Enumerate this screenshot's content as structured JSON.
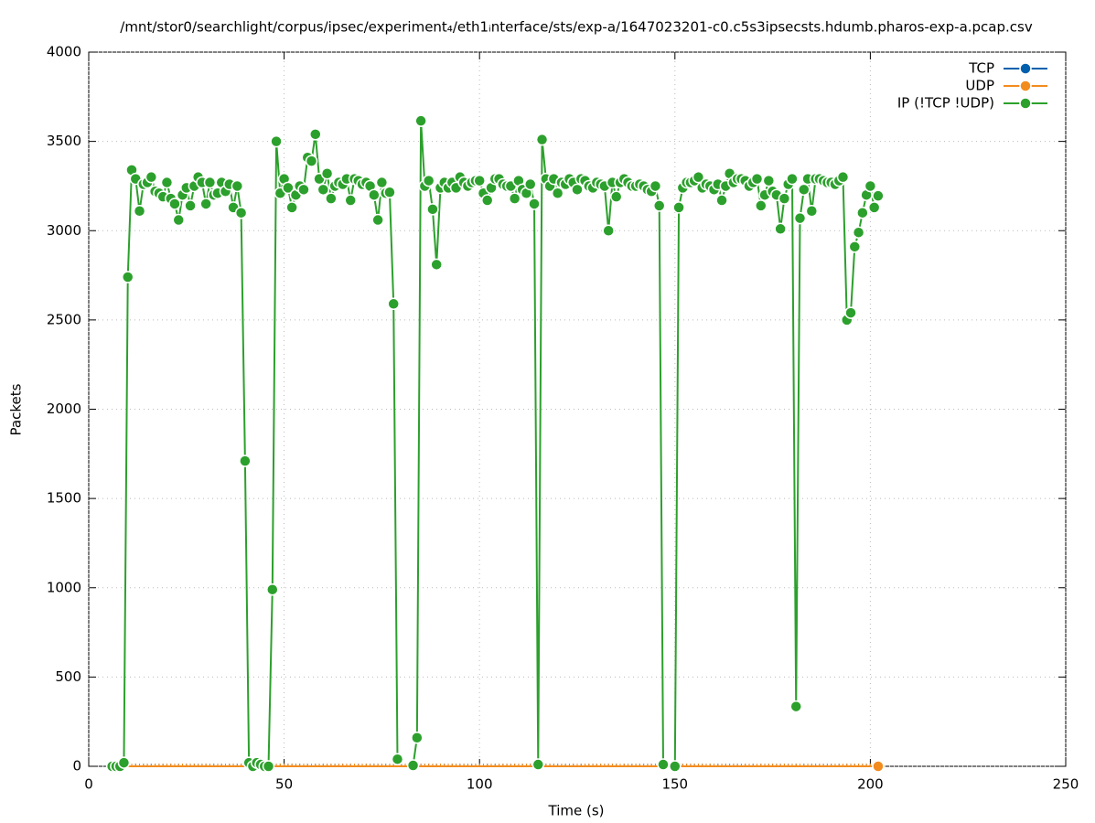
{
  "chart_data": {
    "type": "line",
    "title": "/mnt/stor0/searchlight/corpus/ipsec/experiment₄/eth1ᵢnterface/sts/exp-a/1647023201-c0.c5s3ipsecsts.hdumb.pharos-exp-a.pcap.csv",
    "x_label": "Time (s)",
    "y_label": "Packets",
    "xlim": [
      0,
      250
    ],
    "xticks": [
      0,
      50,
      100,
      150,
      200,
      250
    ],
    "ylim": [
      0,
      4000
    ],
    "yticks": [
      0,
      500,
      1000,
      1500,
      2000,
      2500,
      3000,
      3500,
      4000
    ],
    "grid": true,
    "legend": "top right",
    "x": [
      6,
      7,
      8,
      9,
      10,
      11,
      12,
      13,
      14,
      15,
      16,
      17,
      18,
      19,
      20,
      21,
      22,
      23,
      24,
      25,
      26,
      27,
      28,
      29,
      30,
      31,
      32,
      33,
      34,
      35,
      36,
      37,
      38,
      39,
      40,
      41,
      42,
      43,
      44,
      45,
      46,
      47,
      48,
      49,
      50,
      51,
      52,
      53,
      54,
      55,
      56,
      57,
      58,
      59,
      60,
      61,
      62,
      63,
      64,
      65,
      66,
      67,
      68,
      69,
      70,
      71,
      72,
      73,
      74,
      75,
      76,
      77,
      78,
      79,
      80,
      81,
      82,
      83,
      84,
      85,
      86,
      87,
      88,
      89,
      90,
      91,
      92,
      93,
      94,
      95,
      96,
      97,
      98,
      99,
      100,
      101,
      102,
      103,
      104,
      105,
      106,
      107,
      108,
      109,
      110,
      111,
      112,
      113,
      114,
      115,
      116,
      117,
      118,
      119,
      120,
      121,
      122,
      123,
      124,
      125,
      126,
      127,
      128,
      129,
      130,
      131,
      132,
      133,
      134,
      135,
      136,
      137,
      138,
      139,
      140,
      141,
      142,
      143,
      144,
      145,
      146,
      147,
      148,
      149,
      150,
      151,
      152,
      153,
      154,
      155,
      156,
      157,
      158,
      159,
      160,
      161,
      162,
      163,
      164,
      165,
      166,
      167,
      168,
      169,
      170,
      171,
      172,
      173,
      174,
      175,
      176,
      177,
      178,
      179,
      180,
      181,
      182,
      183,
      184,
      185,
      186,
      187,
      188,
      189,
      190,
      191,
      192,
      193,
      194,
      195,
      196,
      197,
      198,
      199,
      200,
      201,
      202
    ],
    "series": [
      {
        "name": "TCP",
        "color": "#0060ad",
        "values": [
          0,
          0,
          0,
          0,
          0,
          0,
          0,
          0,
          0,
          0,
          0,
          0,
          0,
          0,
          0,
          0,
          0,
          0,
          0,
          0,
          0,
          0,
          0,
          0,
          0,
          0,
          0,
          0,
          0,
          0,
          0,
          0,
          0,
          0,
          0,
          0,
          0,
          0,
          0,
          0,
          0,
          0,
          0,
          0,
          0,
          0,
          0,
          0,
          0,
          0,
          0,
          0,
          0,
          0,
          0,
          0,
          0,
          0,
          0,
          0,
          0,
          0,
          0,
          0,
          0,
          0,
          0,
          0,
          0,
          0,
          0,
          0,
          0,
          0,
          0,
          0,
          0,
          0,
          0,
          0,
          0,
          0,
          0,
          0,
          0,
          0,
          0,
          0,
          0,
          0,
          0,
          0,
          0,
          0,
          0,
          0,
          0,
          0,
          0,
          0,
          0,
          0,
          0,
          0,
          0,
          0,
          0,
          0,
          0,
          0,
          0,
          0,
          0,
          0,
          0,
          0,
          0,
          0,
          0,
          0,
          0,
          0,
          0,
          0,
          0,
          0,
          0,
          0,
          0,
          0,
          0,
          0,
          0,
          0,
          0,
          0,
          0,
          0,
          0,
          0,
          0,
          0,
          0,
          0,
          0,
          0,
          0,
          0,
          0,
          0,
          0,
          0,
          0,
          0,
          0,
          0,
          0,
          0,
          0,
          0,
          0,
          0,
          0,
          0,
          0,
          0,
          0,
          0,
          0,
          0,
          0,
          0,
          0,
          0,
          0,
          0,
          0,
          0,
          0,
          0,
          0,
          0,
          0,
          0,
          0,
          0,
          0,
          0,
          0,
          0,
          0,
          0,
          0,
          0,
          0,
          0,
          0
        ]
      },
      {
        "name": "UDP",
        "color": "#f28c1e",
        "values": [
          0,
          0,
          0,
          0,
          0,
          0,
          0,
          0,
          0,
          0,
          0,
          0,
          0,
          0,
          0,
          0,
          0,
          0,
          0,
          0,
          0,
          0,
          0,
          0,
          0,
          0,
          0,
          0,
          0,
          0,
          0,
          0,
          0,
          0,
          0,
          0,
          0,
          0,
          0,
          0,
          0,
          0,
          0,
          0,
          0,
          0,
          0,
          0,
          0,
          0,
          0,
          0,
          0,
          0,
          0,
          0,
          0,
          0,
          0,
          0,
          0,
          0,
          0,
          0,
          0,
          0,
          0,
          0,
          0,
          0,
          0,
          0,
          0,
          0,
          0,
          0,
          0,
          0,
          0,
          0,
          0,
          0,
          0,
          0,
          0,
          0,
          0,
          0,
          0,
          0,
          0,
          0,
          0,
          0,
          0,
          0,
          0,
          0,
          0,
          0,
          0,
          0,
          0,
          0,
          0,
          0,
          0,
          0,
          0,
          0,
          0,
          0,
          0,
          0,
          0,
          0,
          0,
          0,
          0,
          0,
          0,
          0,
          0,
          0,
          0,
          0,
          0,
          0,
          0,
          0,
          0,
          0,
          0,
          0,
          0,
          0,
          0,
          0,
          0,
          0,
          0,
          0,
          0,
          0,
          0,
          0,
          0,
          0,
          0,
          0,
          0,
          0,
          0,
          0,
          0,
          0,
          0,
          0,
          0,
          0,
          0,
          0,
          0,
          0,
          0,
          0,
          0,
          0,
          0,
          0,
          0,
          0,
          0,
          0,
          0,
          0,
          0,
          0,
          0,
          0,
          0,
          0,
          0,
          0,
          0,
          0,
          0,
          0,
          0,
          0,
          0,
          0,
          0,
          0,
          0,
          0,
          0
        ]
      },
      {
        "name": "IP (!TCP  !UDP)",
        "color": "#2ca02c",
        "values": [
          0,
          0,
          0,
          20,
          2740,
          3340,
          3290,
          3110,
          3260,
          3270,
          3300,
          3220,
          3210,
          3190,
          3270,
          3180,
          3150,
          3060,
          3200,
          3240,
          3140,
          3250,
          3300,
          3270,
          3150,
          3270,
          3200,
          3210,
          3270,
          3220,
          3260,
          3130,
          3250,
          3100,
          1710,
          20,
          0,
          20,
          10,
          0,
          0,
          990,
          3500,
          3210,
          3290,
          3240,
          3130,
          3200,
          3250,
          3230,
          3410,
          3390,
          3540,
          3290,
          3230,
          3320,
          3180,
          3250,
          3270,
          3260,
          3290,
          3170,
          3290,
          3280,
          3260,
          3270,
          3250,
          3200,
          3060,
          3270,
          3210,
          3215,
          2590,
          40,
          null,
          null,
          null,
          5,
          160,
          3615,
          3250,
          3280,
          3120,
          2810,
          3240,
          3270,
          3240,
          3270,
          3240,
          3300,
          3270,
          3250,
          3270,
          3280,
          3280,
          3210,
          3170,
          3240,
          3290,
          3290,
          3260,
          3250,
          3250,
          3180,
          3280,
          3230,
          3210,
          3260,
          3150,
          10,
          3510,
          3290,
          3250,
          3290,
          3210,
          3270,
          3260,
          3290,
          3270,
          3230,
          3290,
          3280,
          3250,
          3240,
          3270,
          3260,
          3250,
          3000,
          3270,
          3190,
          3270,
          3290,
          3270,
          3250,
          3250,
          3260,
          3250,
          3230,
          3220,
          3250,
          3140,
          10,
          null,
          null,
          0,
          3130,
          3240,
          3270,
          3270,
          3280,
          3300,
          3240,
          3260,
          3250,
          3230,
          3260,
          3170,
          3250,
          3320,
          3270,
          3290,
          3290,
          3280,
          3250,
          3270,
          3290,
          3140,
          3200,
          3280,
          3220,
          3200,
          3010,
          3180,
          3260,
          3290,
          335,
          3070,
          3230,
          3290,
          3110,
          3290,
          3290,
          3280,
          3270,
          3270,
          3260,
          3280,
          3300,
          2500,
          2540,
          2910,
          2990,
          3100,
          3200,
          3250,
          3130,
          3195
        ]
      }
    ]
  }
}
